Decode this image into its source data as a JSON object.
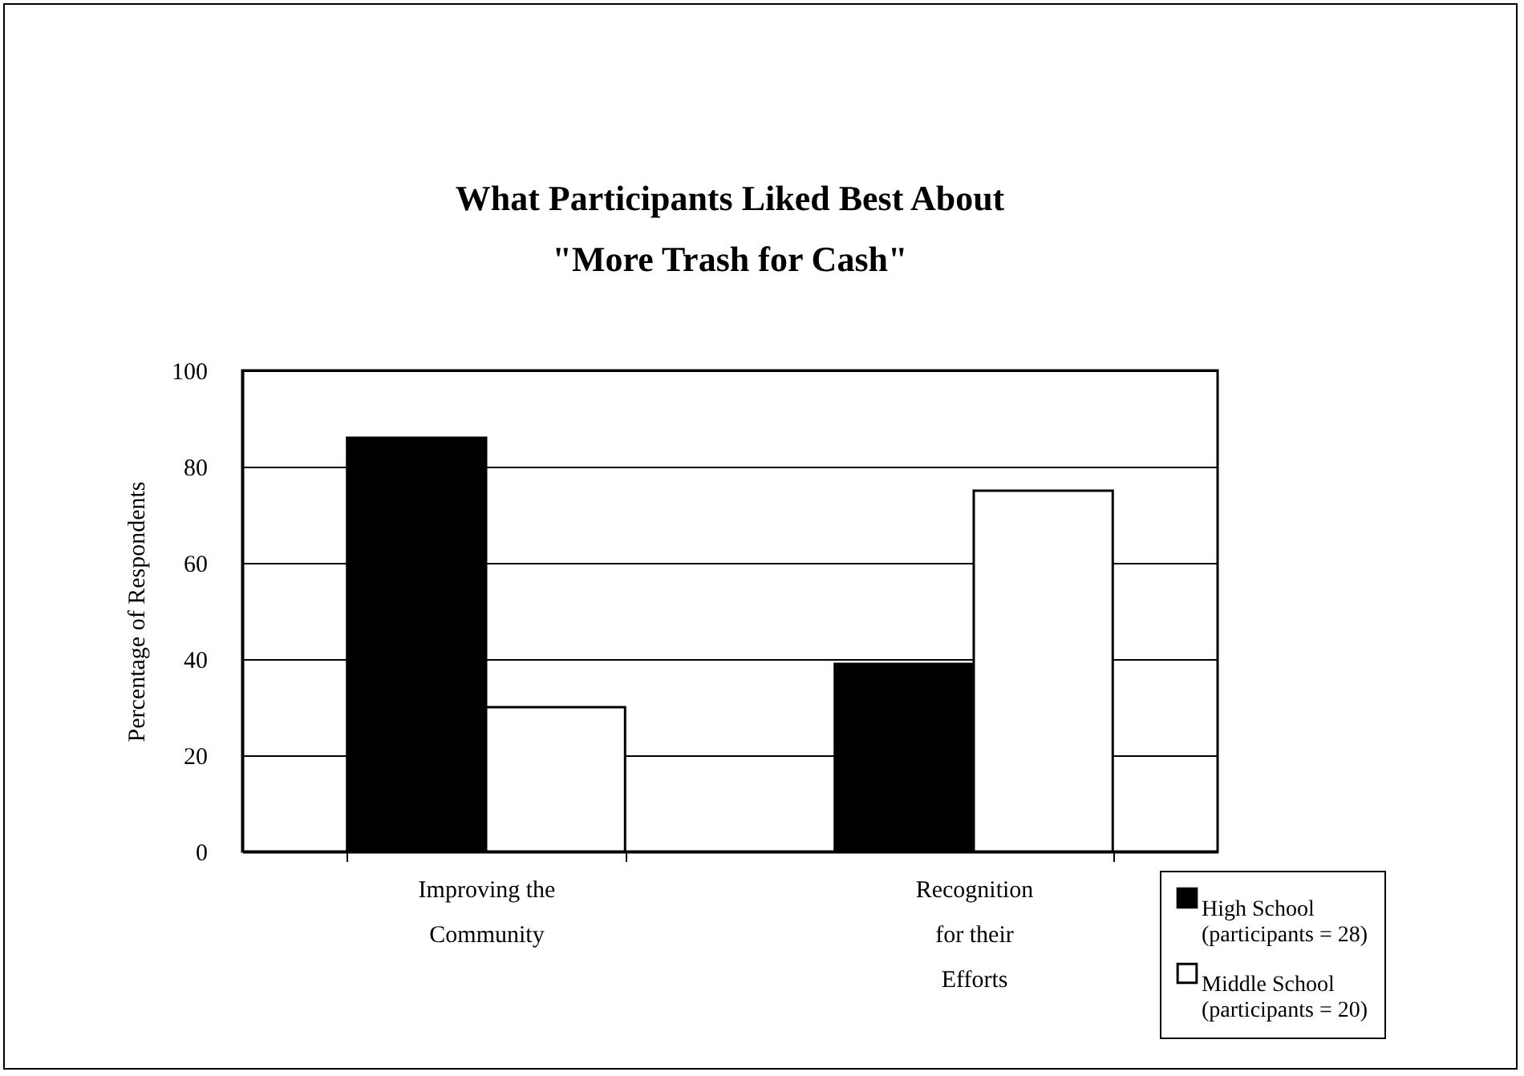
{
  "chart_data": {
    "type": "bar",
    "title": "What Participants Liked Best About\n\"More Trash for Cash\"",
    "ylabel": "Percentage of Respondents",
    "categories": [
      "Improving the\nCommunity",
      "Recognition\nfor their\nEfforts"
    ],
    "series": [
      {
        "name": "High School\n(participants = 28)",
        "color": "#000000",
        "values": [
          86,
          39
        ]
      },
      {
        "name": "Middle School\n(participants = 20)",
        "color": "#ffffff",
        "values": [
          30,
          75
        ]
      }
    ],
    "ylim": [
      0,
      100
    ],
    "yticks": [
      0,
      20,
      40,
      60,
      80,
      100
    ],
    "grid": "y",
    "legend": "bottom right"
  }
}
